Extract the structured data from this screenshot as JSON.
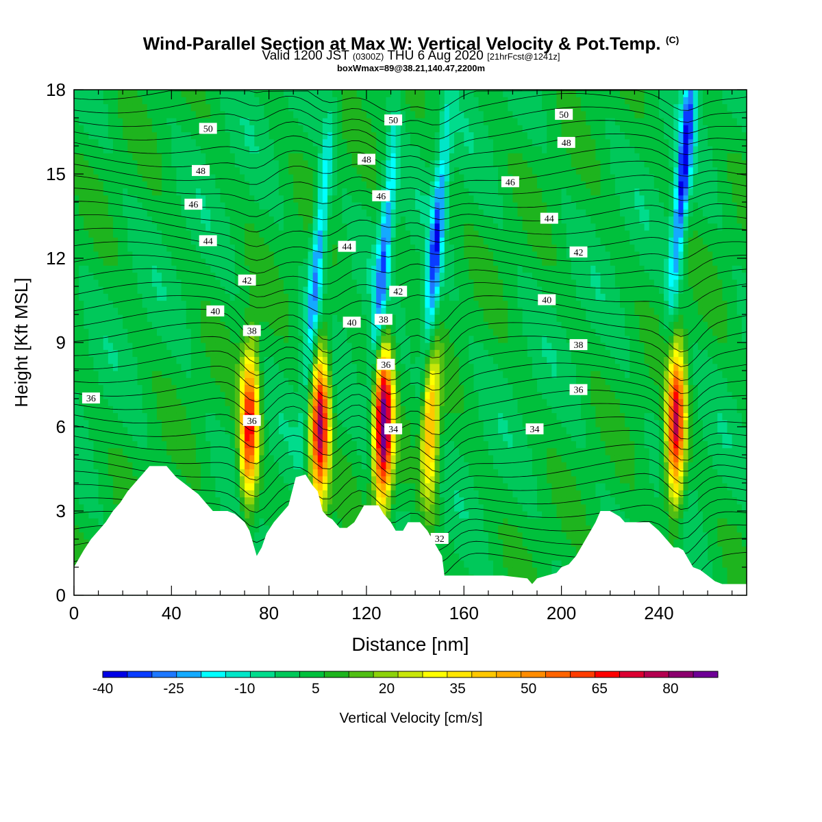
{
  "chart_data": {
    "type": "heatmap",
    "title": "Wind-Parallel Section at Max W: Vertical Velocity & Pot.Temp.",
    "title_mark": "(C)",
    "subtitle_main": "Valid 1200 JST",
    "subtitle_utc": "(0300Z)",
    "subtitle_date": "THU 6 Aug 2020",
    "subtitle_fcst": "[21hrFcst@1241z]",
    "box_info": "boxWmax=89@38.21,140.47,2200m",
    "xlabel": "Distance [nm]",
    "ylabel": "Height [Kft MSL]",
    "xlim": [
      0,
      276
    ],
    "ylim": [
      0,
      18
    ],
    "x_ticks": [
      "0",
      "40",
      "80",
      "120",
      "160",
      "200",
      "240"
    ],
    "y_ticks": [
      "0",
      "3",
      "6",
      "9",
      "12",
      "15",
      "18"
    ],
    "colorbar": {
      "label": "Vertical Velocity [cm/s]",
      "tick_labels": [
        "-40",
        "-25",
        "-10",
        "5",
        "20",
        "35",
        "50",
        "65",
        "80"
      ],
      "range": [
        -40,
        90
      ],
      "colors": [
        "#0000e6",
        "#0a3cff",
        "#1e78ff",
        "#14aaff",
        "#00ffff",
        "#00e6c8",
        "#00dc8c",
        "#00c85a",
        "#00c03c",
        "#1eb41e",
        "#50be14",
        "#8cd20a",
        "#c8e60a",
        "#ffff00",
        "#ffe600",
        "#ffc800",
        "#ffaa00",
        "#ff8c00",
        "#ff6400",
        "#ff3c00",
        "#ff0000",
        "#dc0032",
        "#b40050",
        "#8c006e",
        "#6e0096"
      ]
    },
    "updrafts_cm_s": [
      {
        "x": 72,
        "peak": 65
      },
      {
        "x": 101,
        "peak": 75
      },
      {
        "x": 127,
        "peak": 85
      },
      {
        "x": 146,
        "peak": 45
      },
      {
        "x": 247,
        "peak": 70
      }
    ],
    "downdrafts_cm_s": [
      {
        "x": 101,
        "peak": -30
      },
      {
        "x": 128,
        "peak": -30
      },
      {
        "x": 149,
        "peak": -35
      },
      {
        "x": 248,
        "peak": -40
      }
    ],
    "theta_contour_labels": [
      {
        "text": "50",
        "x": 55,
        "y": 16.6
      },
      {
        "text": "48",
        "x": 52,
        "y": 15.1
      },
      {
        "text": "46",
        "x": 49,
        "y": 13.9
      },
      {
        "text": "44",
        "x": 55,
        "y": 12.6
      },
      {
        "text": "42",
        "x": 71,
        "y": 11.2
      },
      {
        "text": "40",
        "x": 58,
        "y": 10.1
      },
      {
        "text": "38",
        "x": 73,
        "y": 9.4
      },
      {
        "text": "36",
        "x": 7,
        "y": 7.0
      },
      {
        "text": "36",
        "x": 73,
        "y": 6.2
      },
      {
        "text": "50",
        "x": 131,
        "y": 16.9
      },
      {
        "text": "48",
        "x": 120,
        "y": 15.5
      },
      {
        "text": "46",
        "x": 126,
        "y": 14.2
      },
      {
        "text": "44",
        "x": 112,
        "y": 12.4
      },
      {
        "text": "42",
        "x": 133,
        "y": 10.8
      },
      {
        "text": "40",
        "x": 114,
        "y": 9.7
      },
      {
        "text": "38",
        "x": 127,
        "y": 9.8
      },
      {
        "text": "36",
        "x": 128,
        "y": 8.2
      },
      {
        "text": "34",
        "x": 131,
        "y": 5.9
      },
      {
        "text": "32",
        "x": 150,
        "y": 2.0
      },
      {
        "text": "50",
        "x": 201,
        "y": 17.1
      },
      {
        "text": "48",
        "x": 202,
        "y": 16.1
      },
      {
        "text": "46",
        "x": 179,
        "y": 14.7
      },
      {
        "text": "44",
        "x": 195,
        "y": 13.4
      },
      {
        "text": "42",
        "x": 207,
        "y": 12.2
      },
      {
        "text": "40",
        "x": 194,
        "y": 10.5
      },
      {
        "text": "38",
        "x": 207,
        "y": 8.9
      },
      {
        "text": "36",
        "x": 207,
        "y": 7.3
      },
      {
        "text": "34",
        "x": 189,
        "y": 5.9
      }
    ],
    "terrain_kft": [
      [
        0,
        1.0
      ],
      [
        4,
        1.6
      ],
      [
        7,
        2.0
      ],
      [
        10,
        2.3
      ],
      [
        13,
        2.6
      ],
      [
        16,
        3.0
      ],
      [
        19,
        3.3
      ],
      [
        22,
        3.7
      ],
      [
        25,
        4.0
      ],
      [
        28,
        4.3
      ],
      [
        31,
        4.6
      ],
      [
        35,
        4.6
      ],
      [
        38,
        4.6
      ],
      [
        40,
        4.4
      ],
      [
        42,
        4.2
      ],
      [
        45,
        4.0
      ],
      [
        48,
        3.8
      ],
      [
        51,
        3.6
      ],
      [
        54,
        3.3
      ],
      [
        57,
        3.0
      ],
      [
        63,
        3.0
      ],
      [
        66,
        2.9
      ],
      [
        70,
        2.6
      ],
      [
        72,
        2.3
      ],
      [
        75,
        1.4
      ],
      [
        77,
        1.7
      ],
      [
        79,
        2.2
      ],
      [
        82,
        2.6
      ],
      [
        85,
        2.9
      ],
      [
        88,
        3.2
      ],
      [
        91,
        4.2
      ],
      [
        95,
        4.3
      ],
      [
        98,
        3.9
      ],
      [
        100,
        3.7
      ],
      [
        102,
        3.0
      ],
      [
        104,
        2.8
      ],
      [
        106,
        2.7
      ],
      [
        109,
        2.4
      ],
      [
        112,
        2.4
      ],
      [
        115,
        2.6
      ],
      [
        117,
        2.9
      ],
      [
        119,
        3.2
      ],
      [
        125,
        3.2
      ],
      [
        127,
        2.9
      ],
      [
        130,
        2.6
      ],
      [
        132,
        2.3
      ],
      [
        135,
        2.3
      ],
      [
        137,
        2.6
      ],
      [
        142,
        2.6
      ],
      [
        145,
        2.3
      ],
      [
        147,
        2.0
      ],
      [
        149,
        1.7
      ],
      [
        151,
        1.4
      ],
      [
        152,
        0.7
      ],
      [
        160,
        0.7
      ],
      [
        176,
        0.7
      ],
      [
        186,
        0.6
      ],
      [
        188,
        0.4
      ],
      [
        190,
        0.6
      ],
      [
        194,
        0.7
      ],
      [
        198,
        0.8
      ],
      [
        200,
        1.0
      ],
      [
        203,
        1.1
      ],
      [
        206,
        1.4
      ],
      [
        208,
        1.7
      ],
      [
        210,
        2.0
      ],
      [
        212,
        2.3
      ],
      [
        214,
        2.6
      ],
      [
        216,
        3.0
      ],
      [
        220,
        3.0
      ],
      [
        224,
        2.8
      ],
      [
        226,
        2.6
      ],
      [
        236,
        2.6
      ],
      [
        240,
        2.3
      ],
      [
        243,
        2.0
      ],
      [
        246,
        1.7
      ],
      [
        248,
        1.7
      ],
      [
        250,
        1.6
      ],
      [
        252,
        1.3
      ],
      [
        254,
        1.0
      ],
      [
        257,
        0.9
      ],
      [
        260,
        0.7
      ],
      [
        263,
        0.5
      ],
      [
        266,
        0.4
      ],
      [
        276,
        0.4
      ]
    ]
  }
}
